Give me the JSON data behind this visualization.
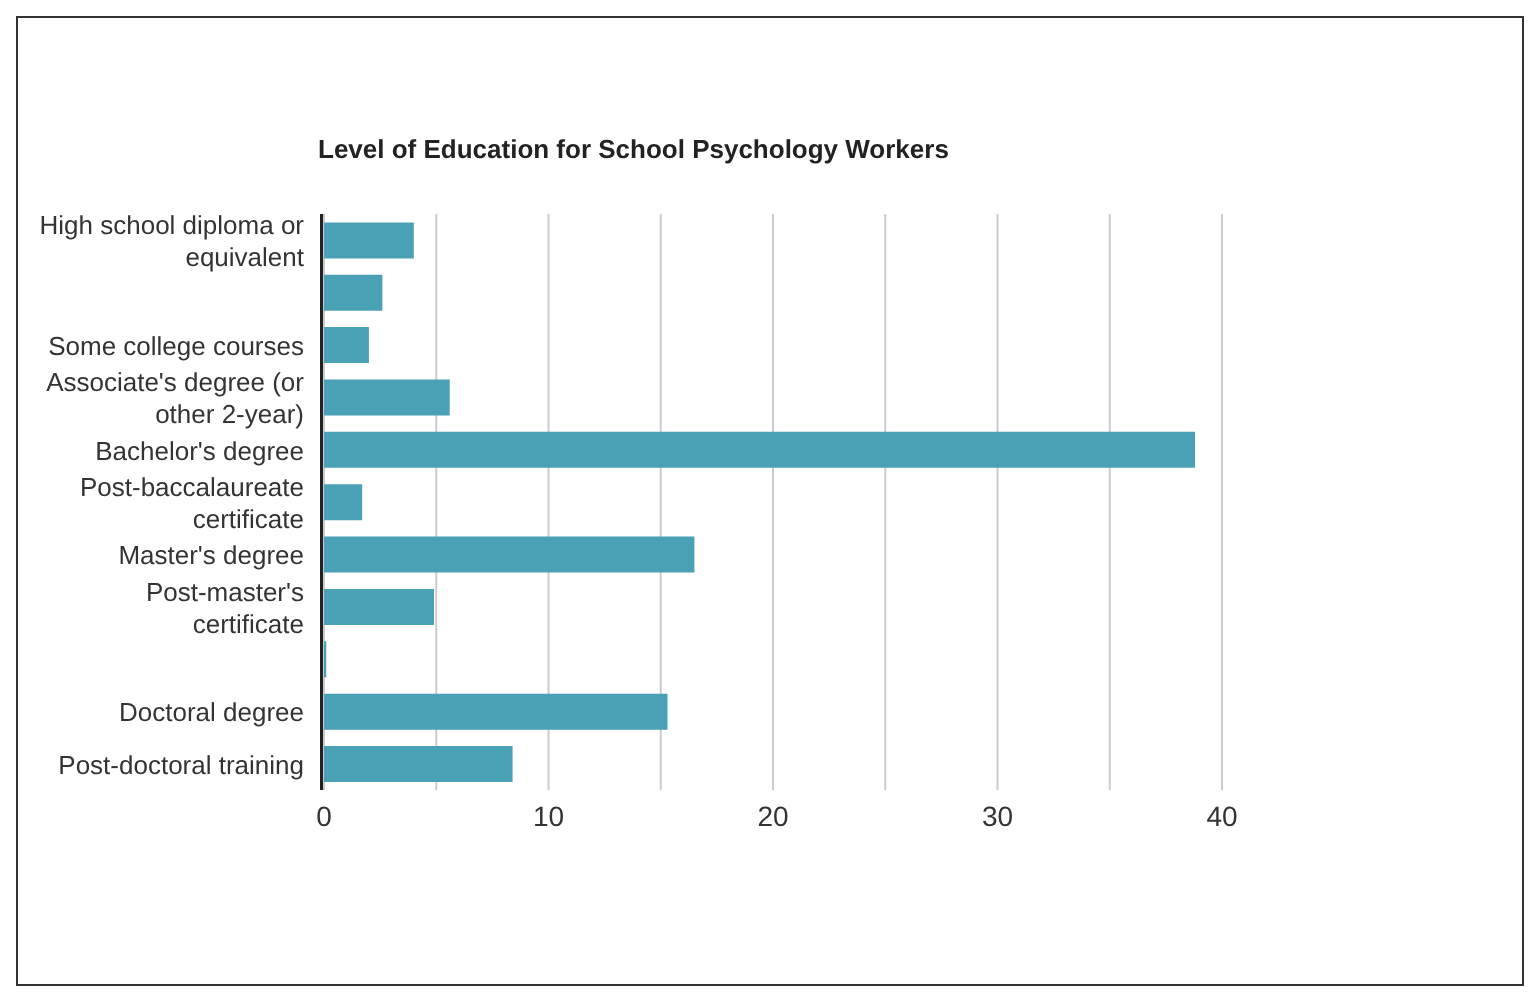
{
  "chart_data": {
    "type": "bar",
    "orientation": "horizontal",
    "title": "Level of Education for School Psychology Workers",
    "categories": [
      "High school diploma or equivalent",
      null,
      "Some college courses",
      "Associate's degree (or other 2-year)",
      "Bachelor's degree",
      "Post-baccalaureate certificate",
      "Master's degree",
      "Post-master's certificate",
      null,
      "Doctoral degree",
      "Post-doctoral training"
    ],
    "values": [
      4.0,
      2.6,
      2.0,
      5.6,
      38.8,
      1.7,
      16.5,
      4.9,
      0.1,
      15.3,
      8.4
    ],
    "color": "#4aa0b4",
    "xlim": [
      0,
      40
    ],
    "xticks": [
      0,
      {
        "value": 5,
        "label": null
      },
      10,
      {
        "value": 15,
        "label": null
      },
      20,
      {
        "value": 25,
        "label": null
      },
      30,
      {
        "value": 35,
        "label": null
      },
      40
    ],
    "grid": "x",
    "legend": false
  }
}
